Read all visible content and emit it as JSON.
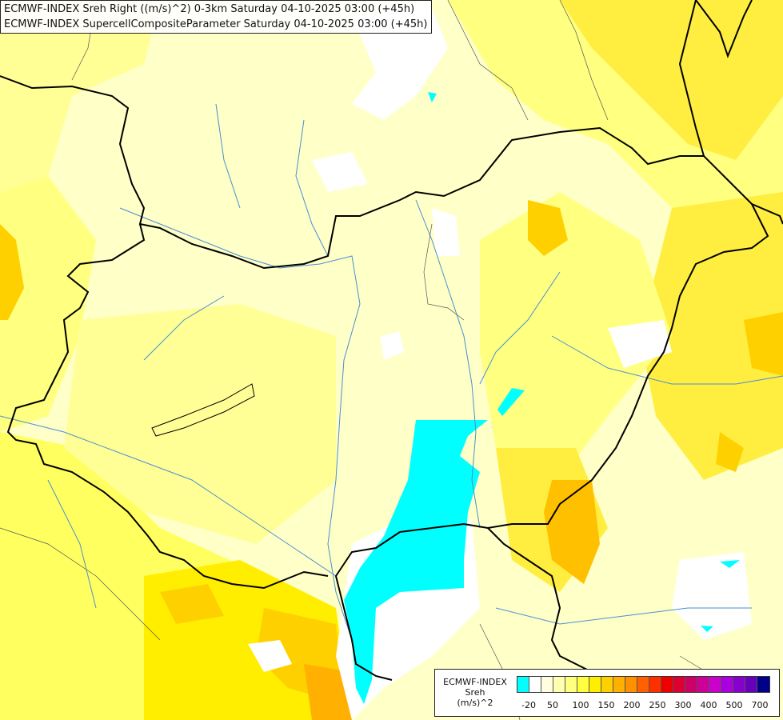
{
  "title": {
    "line1": "ECMWF-INDEX Sreh Right ((m/s)^2) 0-3km Saturday 04-10-2025 03:00 (+45h)",
    "line2": "ECMWF-INDEX SupercellCompositeParameter Saturday 04-10-2025 03:00 (+45h)"
  },
  "legend": {
    "line1": "ECMWF-INDEX",
    "line2": "Sreh",
    "line3": "(m/s)^2",
    "ticks": [
      "-20",
      "50",
      "100",
      "150",
      "200",
      "250",
      "300",
      "400",
      "500",
      "700"
    ],
    "colors": [
      "#00ffff",
      "#ffffff",
      "#ffffe0",
      "#ffffb0",
      "#ffff80",
      "#ffff40",
      "#ffee00",
      "#ffd000",
      "#ffb000",
      "#ff9000",
      "#ff6000",
      "#ff3000",
      "#ee0000",
      "#dd0033",
      "#cc0066",
      "#cc0099",
      "#cc00cc",
      "#aa00dd",
      "#8800cc",
      "#6600bb",
      "#000088"
    ]
  },
  "map_colors": {
    "cyan_low": "#00ffff",
    "white": "#ffffff",
    "pale_yellow": "#ffffc8",
    "light_yellow": "#ffff96",
    "yellow": "#ffff40",
    "deep_yellow": "#ffee00",
    "gold": "#ffd000",
    "orange": "#ffb000",
    "border": "#000000",
    "river": "#4a8fd0"
  }
}
